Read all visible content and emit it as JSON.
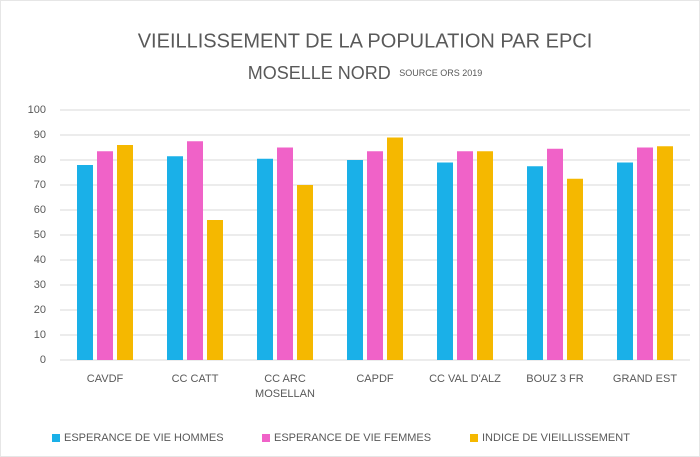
{
  "chart_data": {
    "type": "bar",
    "title": "VIEILLISSEMENT DE LA POPULATION PAR EPCI",
    "subtitle": "MOSELLE NORD",
    "source": "SOURCE ORS 2019",
    "categories": [
      "CAVDF",
      "CC CATT",
      "CC ARC MOSELLAN",
      "CAPDF",
      "CC VAL D'ALZ",
      "BOUZ 3 FR",
      "GRAND EST"
    ],
    "series": [
      {
        "name": "ESPERANCE DE VIE HOMMES",
        "color": "#1ab0e8",
        "values": [
          78,
          81.5,
          80.5,
          80,
          79,
          77.5,
          79
        ]
      },
      {
        "name": "ESPERANCE DE VIE FEMMES",
        "color": "#f062c8",
        "values": [
          83.5,
          87.5,
          85,
          83.5,
          83.5,
          84.5,
          85
        ]
      },
      {
        "name": "INDICE DE VIEILLISSEMENT",
        "color": "#f5b800",
        "values": [
          86,
          56,
          70,
          89,
          83.5,
          72.5,
          85.5
        ]
      }
    ],
    "ylim": [
      0,
      100
    ],
    "yticks": [
      0,
      10,
      20,
      30,
      40,
      50,
      60,
      70,
      80,
      90,
      100
    ],
    "grid": true,
    "legend": "bottom"
  }
}
